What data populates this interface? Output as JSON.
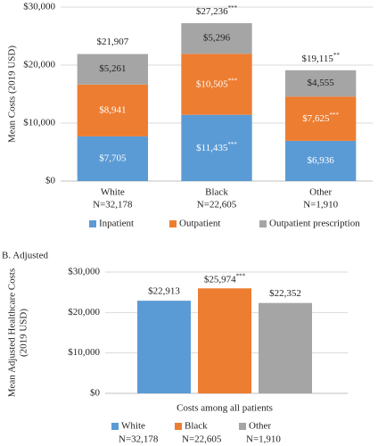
{
  "chart_data": [
    {
      "type": "stacked_bar",
      "ylabel": [
        "Mean Costs (2019 USD)"
      ],
      "categories": [
        "White",
        "Black",
        "Other"
      ],
      "category_notes": [
        "N=32,178",
        "N=22,605",
        "N=1,910"
      ],
      "series": [
        {
          "name": "Inpatient",
          "color": "#5b9bd5",
          "label_color": "#ffffff",
          "values": [
            7705,
            11435,
            6936
          ],
          "value_labels": [
            "$7,705",
            "$11,435***",
            "$6,936"
          ]
        },
        {
          "name": "Outpatient",
          "color": "#ed7d31",
          "label_color": "#ffffff",
          "values": [
            8941,
            10505,
            7625
          ],
          "value_labels": [
            "$8,941",
            "$10,505***",
            "$7,625***"
          ]
        },
        {
          "name": "Outpatient prescription",
          "color": "#a5a5a5",
          "label_color": "#222222",
          "values": [
            5261,
            5296,
            4555
          ],
          "value_labels": [
            "$5,261",
            "$5,296",
            "$4,555"
          ]
        }
      ],
      "totals": [
        21907,
        27236,
        19115
      ],
      "total_labels": [
        "$21,907",
        "$27,236***",
        "$19,115**"
      ],
      "ylim": [
        0,
        30000
      ],
      "yticks": [
        {
          "value": 0,
          "label": "$0"
        },
        {
          "value": 10000,
          "label": "$10,000"
        },
        {
          "value": 20000,
          "label": "$20,000"
        },
        {
          "value": 30000,
          "label": "$30,000"
        }
      ],
      "grid": true
    },
    {
      "type": "bar",
      "subtitle": "B. Adjusted",
      "ylabel": [
        "Mean Adjusted Healthcare Costs",
        "(2019 USD)"
      ],
      "categories": [
        "Costs among all patients"
      ],
      "series": [
        {
          "name": "White",
          "note": "N=32,178",
          "color": "#5b9bd5",
          "values": [
            22913
          ],
          "value_labels": [
            "$22,913"
          ]
        },
        {
          "name": "Black",
          "note": "N=22,605",
          "color": "#ed7d31",
          "values": [
            25974
          ],
          "value_labels": [
            "$25,974***"
          ]
        },
        {
          "name": "Other",
          "note": "N=1,910",
          "color": "#a5a5a5",
          "values": [
            22352
          ],
          "value_labels": [
            "$22,352"
          ]
        }
      ],
      "ylim": [
        0,
        30000
      ],
      "yticks": [
        {
          "value": 0,
          "label": "$0"
        },
        {
          "value": 10000,
          "label": "$10,000"
        },
        {
          "value": 20000,
          "label": "$20,000"
        },
        {
          "value": 30000,
          "label": "$30,000"
        }
      ],
      "grid": true
    }
  ]
}
